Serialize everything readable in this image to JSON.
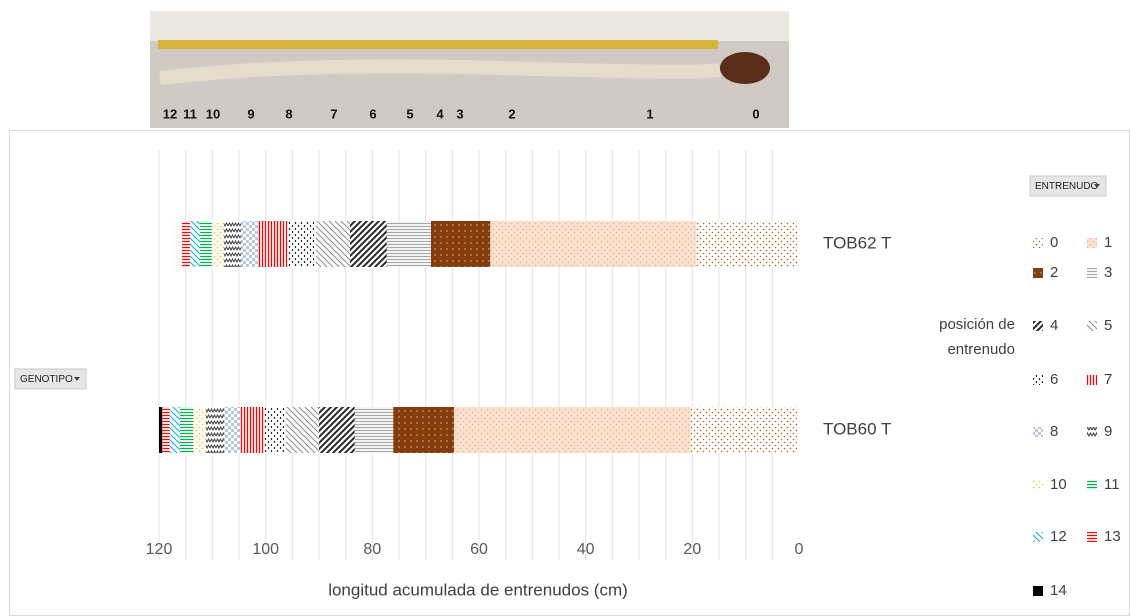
{
  "photo": {
    "labels": [
      "12",
      "11",
      "10",
      "9",
      "8",
      "7",
      "6",
      "5",
      "4",
      "3",
      "2",
      "1",
      "0"
    ]
  },
  "chart_data": {
    "type": "bar",
    "orientation": "horizontal",
    "stacked": true,
    "x_reversed": true,
    "x_label": "longitud acumulada de entrenudos (cm)",
    "legend_title": "posición de entrenudo",
    "series_field": "ENTRENUDO",
    "category_field": "GENOTIPO",
    "categories": [
      "TOB60 T",
      "TOB62 T"
    ],
    "xlim": [
      0,
      120
    ],
    "xticks": [
      0,
      20,
      40,
      60,
      80,
      100,
      120
    ],
    "xgrid": [
      5,
      10,
      15,
      20,
      25,
      30,
      35,
      40,
      45,
      50,
      55,
      60,
      65,
      70,
      75,
      80,
      85,
      90,
      95,
      100,
      105,
      110,
      115,
      120
    ],
    "series": [
      {
        "name": "0",
        "color": "#c55a11",
        "pattern": "sparse-dots",
        "values": [
          20.3,
          19.3
        ]
      },
      {
        "name": "1",
        "color": "#f4b183",
        "pattern": "dense-dots",
        "values": [
          44.4,
          38.6
        ]
      },
      {
        "name": "2",
        "color": "#843c0c",
        "pattern": "solid-dots",
        "values": [
          11.4,
          11.1
        ]
      },
      {
        "name": "3",
        "color": "#a6a6a6",
        "pattern": "horizontal",
        "values": [
          7.2,
          8.3
        ]
      },
      {
        "name": "4",
        "color": "#262626",
        "pattern": "diagonal-wide",
        "values": [
          6.7,
          6.9
        ]
      },
      {
        "name": "5",
        "color": "#8c8c8c",
        "pattern": "diagonal",
        "values": [
          6.2,
          6.4
        ]
      },
      {
        "name": "6",
        "color": "#262626",
        "pattern": "dashed-vertical",
        "values": [
          4.1,
          5.4
        ]
      },
      {
        "name": "7",
        "color": "#ff0000",
        "pattern": "vertical",
        "values": [
          4.5,
          5.3
        ]
      },
      {
        "name": "8",
        "color": "#b4c7e7",
        "pattern": "checker",
        "values": [
          3.0,
          3.3
        ]
      },
      {
        "name": "9",
        "color": "#404040",
        "pattern": "zigzag",
        "values": [
          3.4,
          3.2
        ]
      },
      {
        "name": "10",
        "color": "#ffc000",
        "pattern": "sparse-dots",
        "values": [
          2.4,
          2.3
        ]
      },
      {
        "name": "11",
        "color": "#00b050",
        "pattern": "horizontal",
        "values": [
          2.5,
          2.2
        ]
      },
      {
        "name": "12",
        "color": "#00b0f0",
        "pattern": "diagonal",
        "values": [
          1.9,
          1.9
        ]
      },
      {
        "name": "13",
        "color": "#ff0000",
        "pattern": "horizontal",
        "values": [
          1.4,
          1.5
        ]
      },
      {
        "name": "14",
        "color": "#000000",
        "pattern": "solid",
        "values": [
          0.6,
          null
        ]
      }
    ]
  }
}
